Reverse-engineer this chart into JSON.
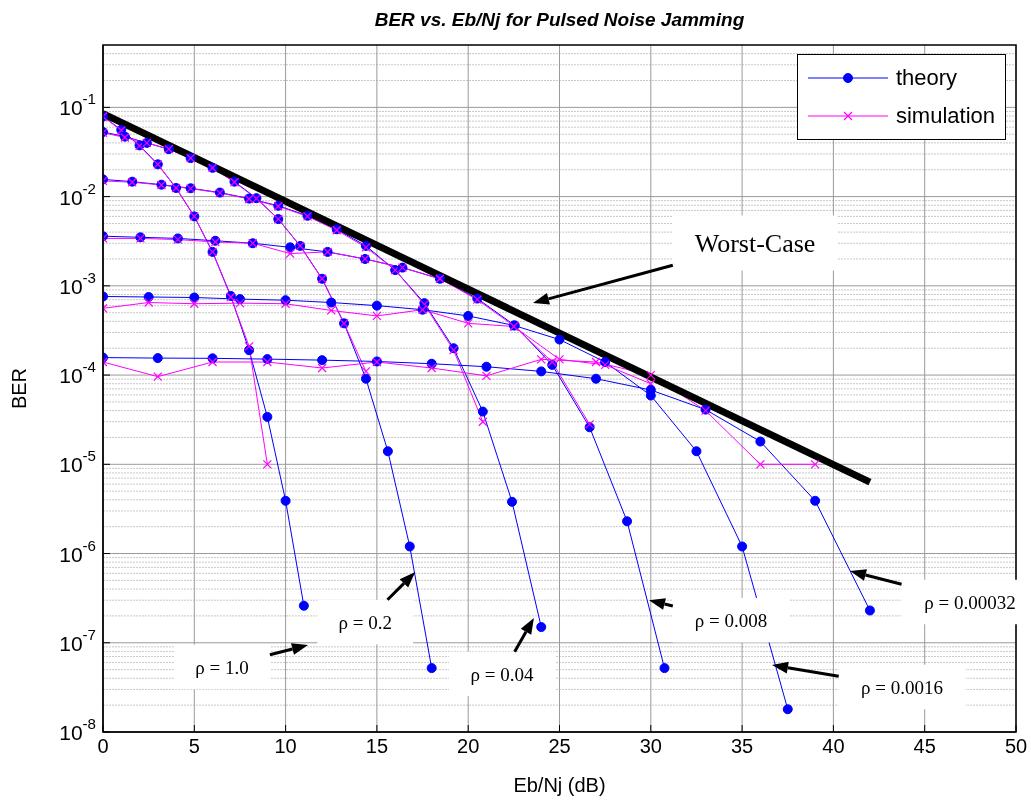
{
  "chart_data": {
    "type": "line",
    "title": "BER vs. Eb/Nj for Pulsed Noise Jamming",
    "xlabel": "Eb/Nj (dB)",
    "ylabel": "BER",
    "xlim": [
      0,
      50
    ],
    "xticks": [
      0,
      5,
      10,
      15,
      20,
      25,
      30,
      35,
      40,
      45,
      50
    ],
    "ylim": [
      1e-08,
      0.5
    ],
    "yticks": [
      {
        "value": 1e-08,
        "label": "10$^{-8}$"
      },
      {
        "value": 1e-07,
        "label": "10$^{-7}$"
      },
      {
        "value": 1e-06,
        "label": "10$^{-6}$"
      },
      {
        "value": 1e-05,
        "label": "10$^{-5}$"
      },
      {
        "value": 0.0001,
        "label": "10$^{-4}$"
      },
      {
        "value": 0.001,
        "label": "10$^{-3}$"
      },
      {
        "value": 0.01,
        "label": "10$^{-2}$"
      },
      {
        "value": 0.1,
        "label": "10$^{-1}$"
      }
    ],
    "log": true,
    "grid": true,
    "legend": "top right",
    "series": [
      {
        "name": "theory",
        "color": "#0000ff",
        "marker": "circle",
        "x": [
          0,
          1,
          2,
          3,
          4,
          5,
          6,
          7,
          8,
          9,
          10,
          11
        ],
        "values": [
          0.079,
          0.056,
          0.0375,
          0.023,
          0.0125,
          0.006,
          0.0024,
          0.00077,
          0.00019,
          3.4e-05,
          3.9e-06,
          2.6e-07
        ]
      },
      {
        "name": "simulation",
        "color": "#ff00ff",
        "marker": "cross",
        "x": [
          0,
          1,
          2,
          3,
          4,
          5,
          6,
          7,
          8,
          9
        ],
        "values": [
          0.079,
          0.055,
          0.037,
          0.023,
          0.0125,
          0.006,
          0.0024,
          0.00075,
          0.00021,
          1e-05
        ]
      },
      {
        "color": "#0000ff",
        "marker": "circle",
        "x": [
          0,
          1.2,
          2.4,
          3.6,
          4.8,
          6,
          7.2,
          8.4,
          9.6,
          10.8,
          12,
          13.2,
          14.4,
          15.6,
          16.8,
          18
        ],
        "values": [
          0.053,
          0.047,
          0.04,
          0.034,
          0.027,
          0.021,
          0.0147,
          0.0096,
          0.0056,
          0.0028,
          0.0012,
          0.00038,
          9.1e-05,
          1.4e-05,
          1.2e-06,
          5.2e-08
        ]
      },
      {
        "color": "#ff00ff",
        "marker": "cross",
        "x": [
          0,
          1.2,
          2.4,
          3.6,
          4.8,
          6,
          7.2,
          8.4,
          9.6,
          10.8,
          12,
          13.2,
          14.4
        ],
        "values": [
          0.052,
          0.046,
          0.04,
          0.034,
          0.027,
          0.021,
          0.0145,
          0.0095,
          0.0056,
          0.0028,
          0.0012,
          0.00038,
          0.00011
        ]
      },
      {
        "color": "#0000ff",
        "marker": "circle",
        "x": [
          0,
          1.6,
          3.2,
          4.8,
          6.4,
          8,
          9.6,
          11.2,
          12.8,
          14.4,
          16,
          17.6,
          19.2,
          20.8,
          22.4,
          24
        ],
        "values": [
          0.0156,
          0.0147,
          0.0136,
          0.0124,
          0.0111,
          0.0095,
          0.0079,
          0.0061,
          0.0043,
          0.0028,
          0.0015,
          0.00064,
          0.0002,
          3.9e-05,
          3.8e-06,
          1.5e-07
        ]
      },
      {
        "color": "#ff00ff",
        "marker": "cross",
        "x": [
          0,
          1.6,
          3.2,
          4.8,
          6.4,
          8,
          9.6,
          11.2,
          12.8,
          14.4,
          16,
          17.6,
          19.2,
          20.8
        ],
        "values": [
          0.015,
          0.0145,
          0.0135,
          0.0123,
          0.011,
          0.0094,
          0.0078,
          0.006,
          0.0042,
          0.0027,
          0.0015,
          0.00062,
          0.00019,
          3e-05
        ]
      },
      {
        "color": "#0000ff",
        "marker": "circle",
        "x": [
          0,
          2.05,
          4.1,
          6.15,
          8.2,
          10.25,
          12.3,
          14.35,
          16.4,
          18.45,
          20.5,
          22.55,
          24.6,
          26.65,
          28.7,
          30.75
        ],
        "values": [
          0.0036,
          0.0035,
          0.0034,
          0.0032,
          0.003,
          0.0027,
          0.0024,
          0.002,
          0.0016,
          0.0012,
          0.00072,
          0.00036,
          0.00013,
          2.6e-05,
          2.3e-06,
          5.2e-08
        ]
      },
      {
        "color": "#ff00ff",
        "marker": "cross",
        "x": [
          0,
          2.05,
          4.1,
          6.15,
          8.2,
          10.25,
          12.3,
          14.35,
          16.4,
          18.45,
          20.5,
          22.55,
          24.6,
          26.65
        ],
        "values": [
          0.0034,
          0.0034,
          0.0033,
          0.0031,
          0.003,
          0.0023,
          0.0024,
          0.002,
          0.0016,
          0.0012,
          0.0007,
          0.00035,
          0.00014,
          2.8e-05
        ]
      },
      {
        "color": "#0000ff",
        "marker": "circle",
        "x": [
          0,
          2.5,
          5,
          7.5,
          10,
          12.5,
          15,
          17.5,
          20,
          22.5,
          25,
          27.5,
          30,
          32.5,
          35,
          37.5
        ],
        "values": [
          0.00076,
          0.00075,
          0.00074,
          0.00071,
          0.00069,
          0.00065,
          0.0006,
          0.00054,
          0.00046,
          0.00036,
          0.00025,
          0.00014,
          5.9e-05,
          1.4e-05,
          1.2e-06,
          1.8e-08
        ]
      },
      {
        "color": "#ff00ff",
        "marker": "cross",
        "x": [
          0,
          2.5,
          5,
          7.5,
          10,
          12.5,
          15,
          17.5,
          20,
          22.5,
          25,
          27.5,
          30
        ],
        "values": [
          0.00056,
          0.00065,
          0.00063,
          0.00064,
          0.00063,
          0.00053,
          0.00046,
          0.00054,
          0.00038,
          0.00035,
          0.00015,
          0.00013,
          8e-05
        ]
      },
      {
        "color": "#0000ff",
        "marker": "circle",
        "x": [
          0,
          3,
          6,
          9,
          12,
          15,
          18,
          21,
          24,
          27,
          30,
          33,
          36,
          39,
          42
        ],
        "values": [
          0.000157,
          0.000155,
          0.000154,
          0.000151,
          0.000147,
          0.000142,
          0.000134,
          0.000124,
          0.00011,
          9.1e-05,
          6.8e-05,
          4.1e-05,
          1.8e-05,
          3.9e-06,
          2.3e-07
        ]
      },
      {
        "color": "#ff00ff",
        "marker": "cross",
        "x": [
          0,
          3,
          6,
          9,
          12,
          15,
          18,
          21,
          24,
          27,
          30,
          33,
          36,
          39
        ],
        "values": [
          0.00014,
          9.6e-05,
          0.00014,
          0.00014,
          0.00012,
          0.00014,
          0.00012,
          9.8e-05,
          0.00015,
          0.00014,
          0.0001,
          4e-05,
          1e-05,
          1e-05
        ]
      },
      {
        "color": "#000000",
        "marker": "none",
        "x": [
          0,
          42
        ],
        "values": [
          0.085,
          6.3e-06
        ]
      }
    ],
    "annotations": [
      "Worst-Case",
      "ρ = 1.0",
      {
        "text": "ρ = 0.2",
        "x": 17.1,
        "y": 6.2e-07
      },
      {
        "text": "ρ = 0.04",
        "x": 23.6,
        "y": 1.9e-07
      },
      {
        "text": "ρ = 0.008",
        "x": 29.9,
        "y": 3e-07
      },
      "ρ = 0.0016",
      "ρ = 0.00032"
    ]
  }
}
